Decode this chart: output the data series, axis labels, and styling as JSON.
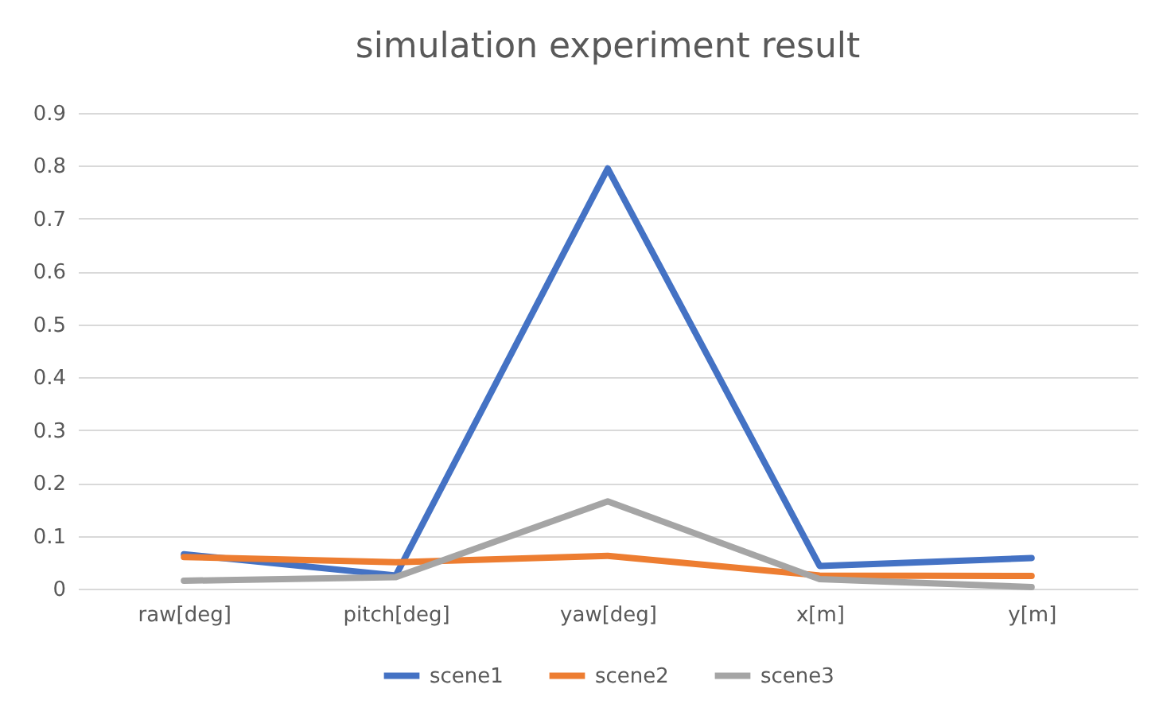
{
  "chart_data": {
    "type": "line",
    "title": "simulation experiment result",
    "categories": [
      "raw[deg]",
      "pitch[deg]",
      "yaw[deg]",
      "x[m]",
      "y[m]"
    ],
    "series": [
      {
        "name": "scene1",
        "color": "#4472c4",
        "values": [
          0.065,
          0.025,
          0.795,
          0.043,
          0.058
        ]
      },
      {
        "name": "scene2",
        "color": "#ed7d31",
        "values": [
          0.06,
          0.05,
          0.062,
          0.025,
          0.024
        ]
      },
      {
        "name": "scene3",
        "color": "#a5a5a5",
        "values": [
          0.015,
          0.022,
          0.165,
          0.018,
          0.003
        ]
      }
    ],
    "ylim": [
      0,
      0.9
    ],
    "yticks": [
      0,
      0.1,
      0.2,
      0.3,
      0.4,
      0.5,
      0.6,
      0.7,
      0.8,
      0.9
    ],
    "grid": "y",
    "legend": "bottom",
    "marker": "none",
    "line_style": "solid"
  }
}
